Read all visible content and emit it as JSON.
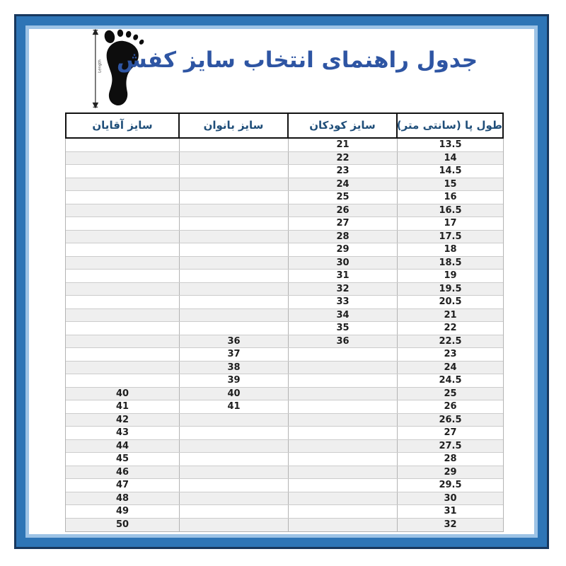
{
  "title": "جدول راهنمای انتخاب سایز کفش",
  "foot_icon": {
    "length_label": "Length"
  },
  "table": {
    "headers": {
      "men": "سایز آقایان",
      "women": "سایز بانوان",
      "children": "سایز کودکان",
      "length": "طول پا (سانتی متر)"
    },
    "rows": [
      {
        "length": "13.5",
        "children": "21",
        "women": "",
        "men": ""
      },
      {
        "length": "14",
        "children": "22",
        "women": "",
        "men": ""
      },
      {
        "length": "14.5",
        "children": "23",
        "women": "",
        "men": ""
      },
      {
        "length": "15",
        "children": "24",
        "women": "",
        "men": ""
      },
      {
        "length": "16",
        "children": "25",
        "women": "",
        "men": ""
      },
      {
        "length": "16.5",
        "children": "26",
        "women": "",
        "men": ""
      },
      {
        "length": "17",
        "children": "27",
        "women": "",
        "men": ""
      },
      {
        "length": "17.5",
        "children": "28",
        "women": "",
        "men": ""
      },
      {
        "length": "18",
        "children": "29",
        "women": "",
        "men": ""
      },
      {
        "length": "18.5",
        "children": "30",
        "women": "",
        "men": ""
      },
      {
        "length": "19",
        "children": "31",
        "women": "",
        "men": ""
      },
      {
        "length": "19.5",
        "children": "32",
        "women": "",
        "men": ""
      },
      {
        "length": "20.5",
        "children": "33",
        "women": "",
        "men": ""
      },
      {
        "length": "21",
        "children": "34",
        "women": "",
        "men": ""
      },
      {
        "length": "22",
        "children": "35",
        "women": "",
        "men": ""
      },
      {
        "length": "22.5",
        "children": "36",
        "women": "36",
        "men": ""
      },
      {
        "length": "23",
        "children": "",
        "women": "37",
        "men": ""
      },
      {
        "length": "24",
        "children": "",
        "women": "38",
        "men": ""
      },
      {
        "length": "24.5",
        "children": "",
        "women": "39",
        "men": ""
      },
      {
        "length": "25",
        "children": "",
        "women": "40",
        "men": "40"
      },
      {
        "length": "26",
        "children": "",
        "women": "41",
        "men": "41"
      },
      {
        "length": "26.5",
        "children": "",
        "women": "",
        "men": "42"
      },
      {
        "length": "27",
        "children": "",
        "women": "",
        "men": "43"
      },
      {
        "length": "27.5",
        "children": "",
        "women": "",
        "men": "44"
      },
      {
        "length": "28",
        "children": "",
        "women": "",
        "men": "45"
      },
      {
        "length": "29",
        "children": "",
        "women": "",
        "men": "46"
      },
      {
        "length": "29.5",
        "children": "",
        "women": "",
        "men": "47"
      },
      {
        "length": "30",
        "children": "",
        "women": "",
        "men": "48"
      },
      {
        "length": "31",
        "children": "",
        "women": "",
        "men": "49"
      },
      {
        "length": "32",
        "children": "",
        "women": "",
        "men": "50"
      }
    ]
  },
  "colors": {
    "frame_outer": "#17375d",
    "frame_band": "#2e75b6",
    "frame_inner_line": "#9dc3e6",
    "title_text": "#2e55a3",
    "header_text": "#1f4e79",
    "cell_text": "#1f1f1f",
    "row_alt": "#efefef"
  }
}
